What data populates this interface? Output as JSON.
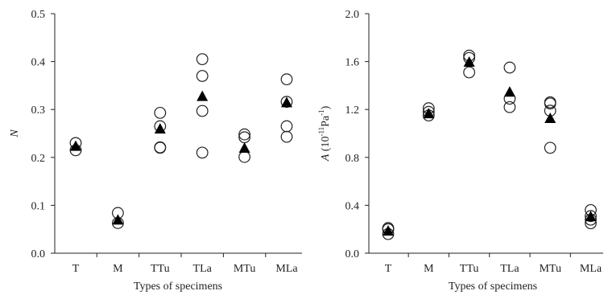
{
  "chart_data": [
    {
      "type": "scatter",
      "panel": "left",
      "xlabel": "Types of specimens",
      "ylabel": "N",
      "ylabel_parts": {
        "italic": "N",
        "rest": ""
      },
      "categories": [
        "T",
        "M",
        "TTu",
        "TLa",
        "MTu",
        "MLa"
      ],
      "ylim": [
        0,
        0.5
      ],
      "yticks": [
        "0.0",
        "0.1",
        "0.2",
        "0.3",
        "0.4",
        "0.5"
      ],
      "series": [
        {
          "marker": "open-circle",
          "points": [
            [
              "T",
              0.23
            ],
            [
              "T",
              0.215
            ],
            [
              "M",
              0.084
            ],
            [
              "M",
              0.063
            ],
            [
              "TTu",
              0.293
            ],
            [
              "TTu",
              0.265
            ],
            [
              "TTu",
              0.221
            ],
            [
              "TTu",
              0.22
            ],
            [
              "TLa",
              0.405
            ],
            [
              "TLa",
              0.37
            ],
            [
              "TLa",
              0.297
            ],
            [
              "TLa",
              0.21
            ],
            [
              "MTu",
              0.248
            ],
            [
              "MTu",
              0.242
            ],
            [
              "MTu",
              0.201
            ],
            [
              "MLa",
              0.363
            ],
            [
              "MLa",
              0.316
            ],
            [
              "MLa",
              0.265
            ],
            [
              "MLa",
              0.243
            ]
          ]
        },
        {
          "marker": "filled-triangle",
          "points": [
            [
              "T",
              0.222
            ],
            [
              "M",
              0.068
            ],
            [
              "TTu",
              0.258
            ],
            [
              "TLa",
              0.326
            ],
            [
              "MTu",
              0.218
            ],
            [
              "MLa",
              0.313
            ]
          ]
        }
      ]
    },
    {
      "type": "scatter",
      "panel": "right",
      "xlabel": "Types of specimens",
      "ylabel": "A (10-11Pa-1)",
      "ylabel_parts": {
        "italic": "A",
        "rest": " (10",
        "sup1": "-11",
        "mid": "Pa",
        "sup2": "-1",
        "end": ")"
      },
      "categories": [
        "T",
        "M",
        "TTu",
        "TLa",
        "MTu",
        "MLa"
      ],
      "ylim": [
        0,
        2.0
      ],
      "yticks": [
        "0.0",
        "0.4",
        "0.8",
        "1.2",
        "1.6",
        "2.0"
      ],
      "series": [
        {
          "marker": "open-circle",
          "points": [
            [
              "T",
              0.21
            ],
            [
              "T",
              0.2
            ],
            [
              "T",
              0.16
            ],
            [
              "M",
              1.21
            ],
            [
              "M",
              1.18
            ],
            [
              "M",
              1.15
            ],
            [
              "TTu",
              1.65
            ],
            [
              "TTu",
              1.63
            ],
            [
              "TTu",
              1.51
            ],
            [
              "TLa",
              1.55
            ],
            [
              "TLa",
              1.29
            ],
            [
              "TLa",
              1.22
            ],
            [
              "MTu",
              1.26
            ],
            [
              "MTu",
              1.25
            ],
            [
              "MTu",
              1.19
            ],
            [
              "MTu",
              0.88
            ],
            [
              "MLa",
              0.36
            ],
            [
              "MLa",
              0.31
            ],
            [
              "MLa",
              0.28
            ],
            [
              "MLa",
              0.25
            ]
          ]
        },
        {
          "marker": "filled-triangle",
          "points": [
            [
              "T",
              0.18
            ],
            [
              "M",
              1.16
            ],
            [
              "TTu",
              1.59
            ],
            [
              "TLa",
              1.34
            ],
            [
              "MTu",
              1.12
            ],
            [
              "MLa",
              0.3
            ]
          ]
        }
      ]
    }
  ]
}
